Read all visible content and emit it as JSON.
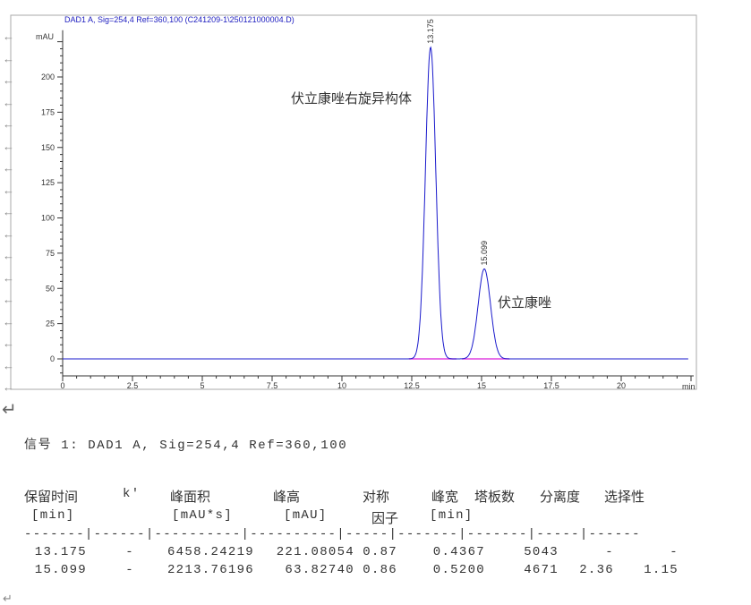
{
  "chart_data": {
    "type": "line",
    "title": "DAD1 A, Sig=254,4 Ref=360,100 (C241209-1\\250121000004.D)",
    "ylabel": "mAU",
    "xlabel": "min",
    "xlim": [
      0,
      22.5
    ],
    "ylim": [
      -12,
      230
    ],
    "x_ticks": [
      0,
      2.5,
      5,
      7.5,
      10,
      12.5,
      15,
      17.5,
      20
    ],
    "x_tick_labels": [
      "0",
      "2.5",
      "5",
      "7.5",
      "10",
      "12.5",
      "15",
      "17.5",
      "20"
    ],
    "y_ticks": [
      0,
      25,
      50,
      75,
      100,
      125,
      150,
      175,
      200
    ],
    "y_tick_labels": [
      "0",
      "25",
      "50",
      "75",
      "100",
      "125",
      "150",
      "175",
      "200"
    ],
    "grid": false,
    "line_color": "#1a1acc",
    "baseline_color": "#e040e0",
    "peaks": [
      {
        "rt": 13.175,
        "height": 221.08,
        "width": 0.4367,
        "rt_label": "13.175",
        "annotation": "伏立康唑右旋异构体",
        "integration": [
          12.4,
          14.1
        ]
      },
      {
        "rt": 15.099,
        "height": 63.83,
        "width": 0.52,
        "rt_label": "15.099",
        "annotation": "伏立康唑",
        "integration": [
          14.3,
          16.0
        ]
      }
    ]
  },
  "signal_line": "信号 1: DAD1 A, Sig=254,4 Ref=360,100",
  "table": {
    "headers": [
      "保留时间",
      "k'",
      "峰面积",
      "峰高",
      "对称",
      "峰宽",
      "塔板数",
      "分离度",
      "选择性"
    ],
    "units": [
      "[min]",
      "[mAU*s]",
      "[mAU]",
      "因子",
      "[min]"
    ],
    "separator": "-------|------|----------|----------|-----|-------|-------|-----|------",
    "rows": [
      [
        "13.175",
        "-",
        "6458.24219",
        "221.08054",
        "0.87",
        "0.4367",
        "5043",
        "-",
        "-"
      ],
      [
        "15.099",
        "-",
        "2213.76196",
        "63.82740",
        "0.86",
        "0.5200",
        "4671",
        "2.36",
        "1.15"
      ]
    ]
  }
}
